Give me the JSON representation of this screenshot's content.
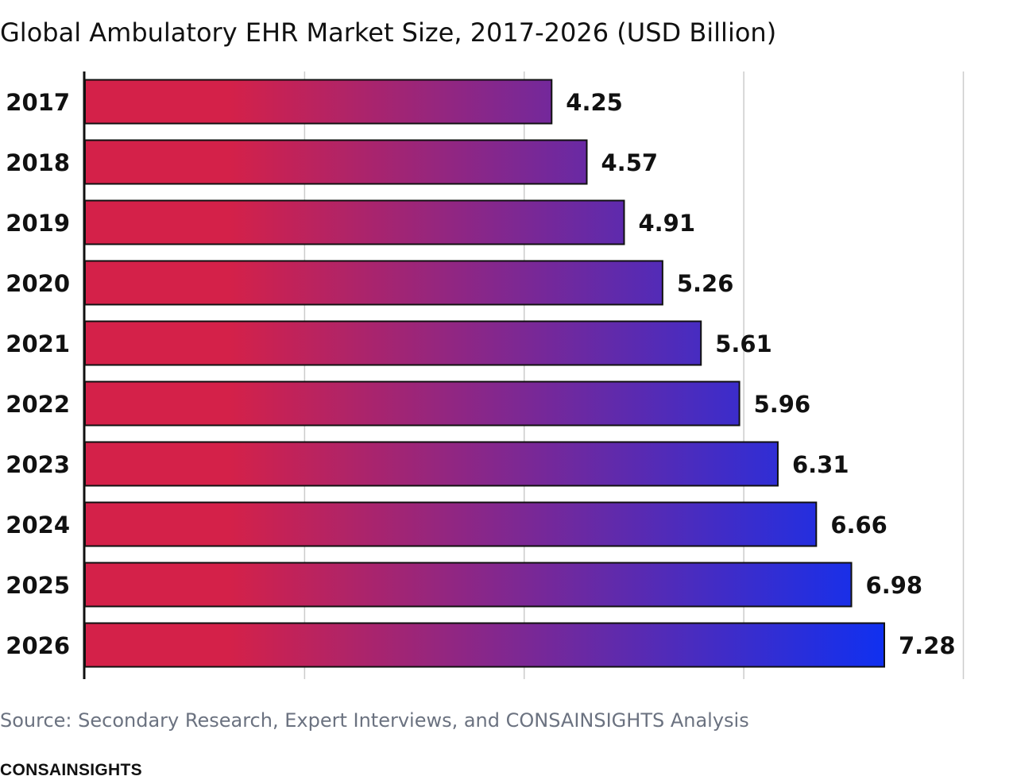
{
  "chart_data": {
    "type": "bar",
    "orientation": "horizontal",
    "title": "Global Ambulatory EHR Market Size, 2017-2026 (USD Billion)",
    "categories": [
      "2017",
      "2018",
      "2019",
      "2020",
      "2021",
      "2022",
      "2023",
      "2024",
      "2025",
      "2026"
    ],
    "values": [
      4.25,
      4.57,
      4.91,
      5.26,
      5.61,
      5.96,
      6.31,
      6.66,
      6.98,
      7.28
    ],
    "xlim": [
      0,
      8
    ],
    "grid": true,
    "colors": {
      "gradient_start": "#d42149",
      "gradient_end": "#1030f0",
      "bar_stroke": "#111111",
      "grid": "#cccccc"
    }
  },
  "source": "Source: Secondary Research, Expert Interviews, and CONSAINSIGHTS Analysis",
  "brand": "CONSAINSIGHTS"
}
